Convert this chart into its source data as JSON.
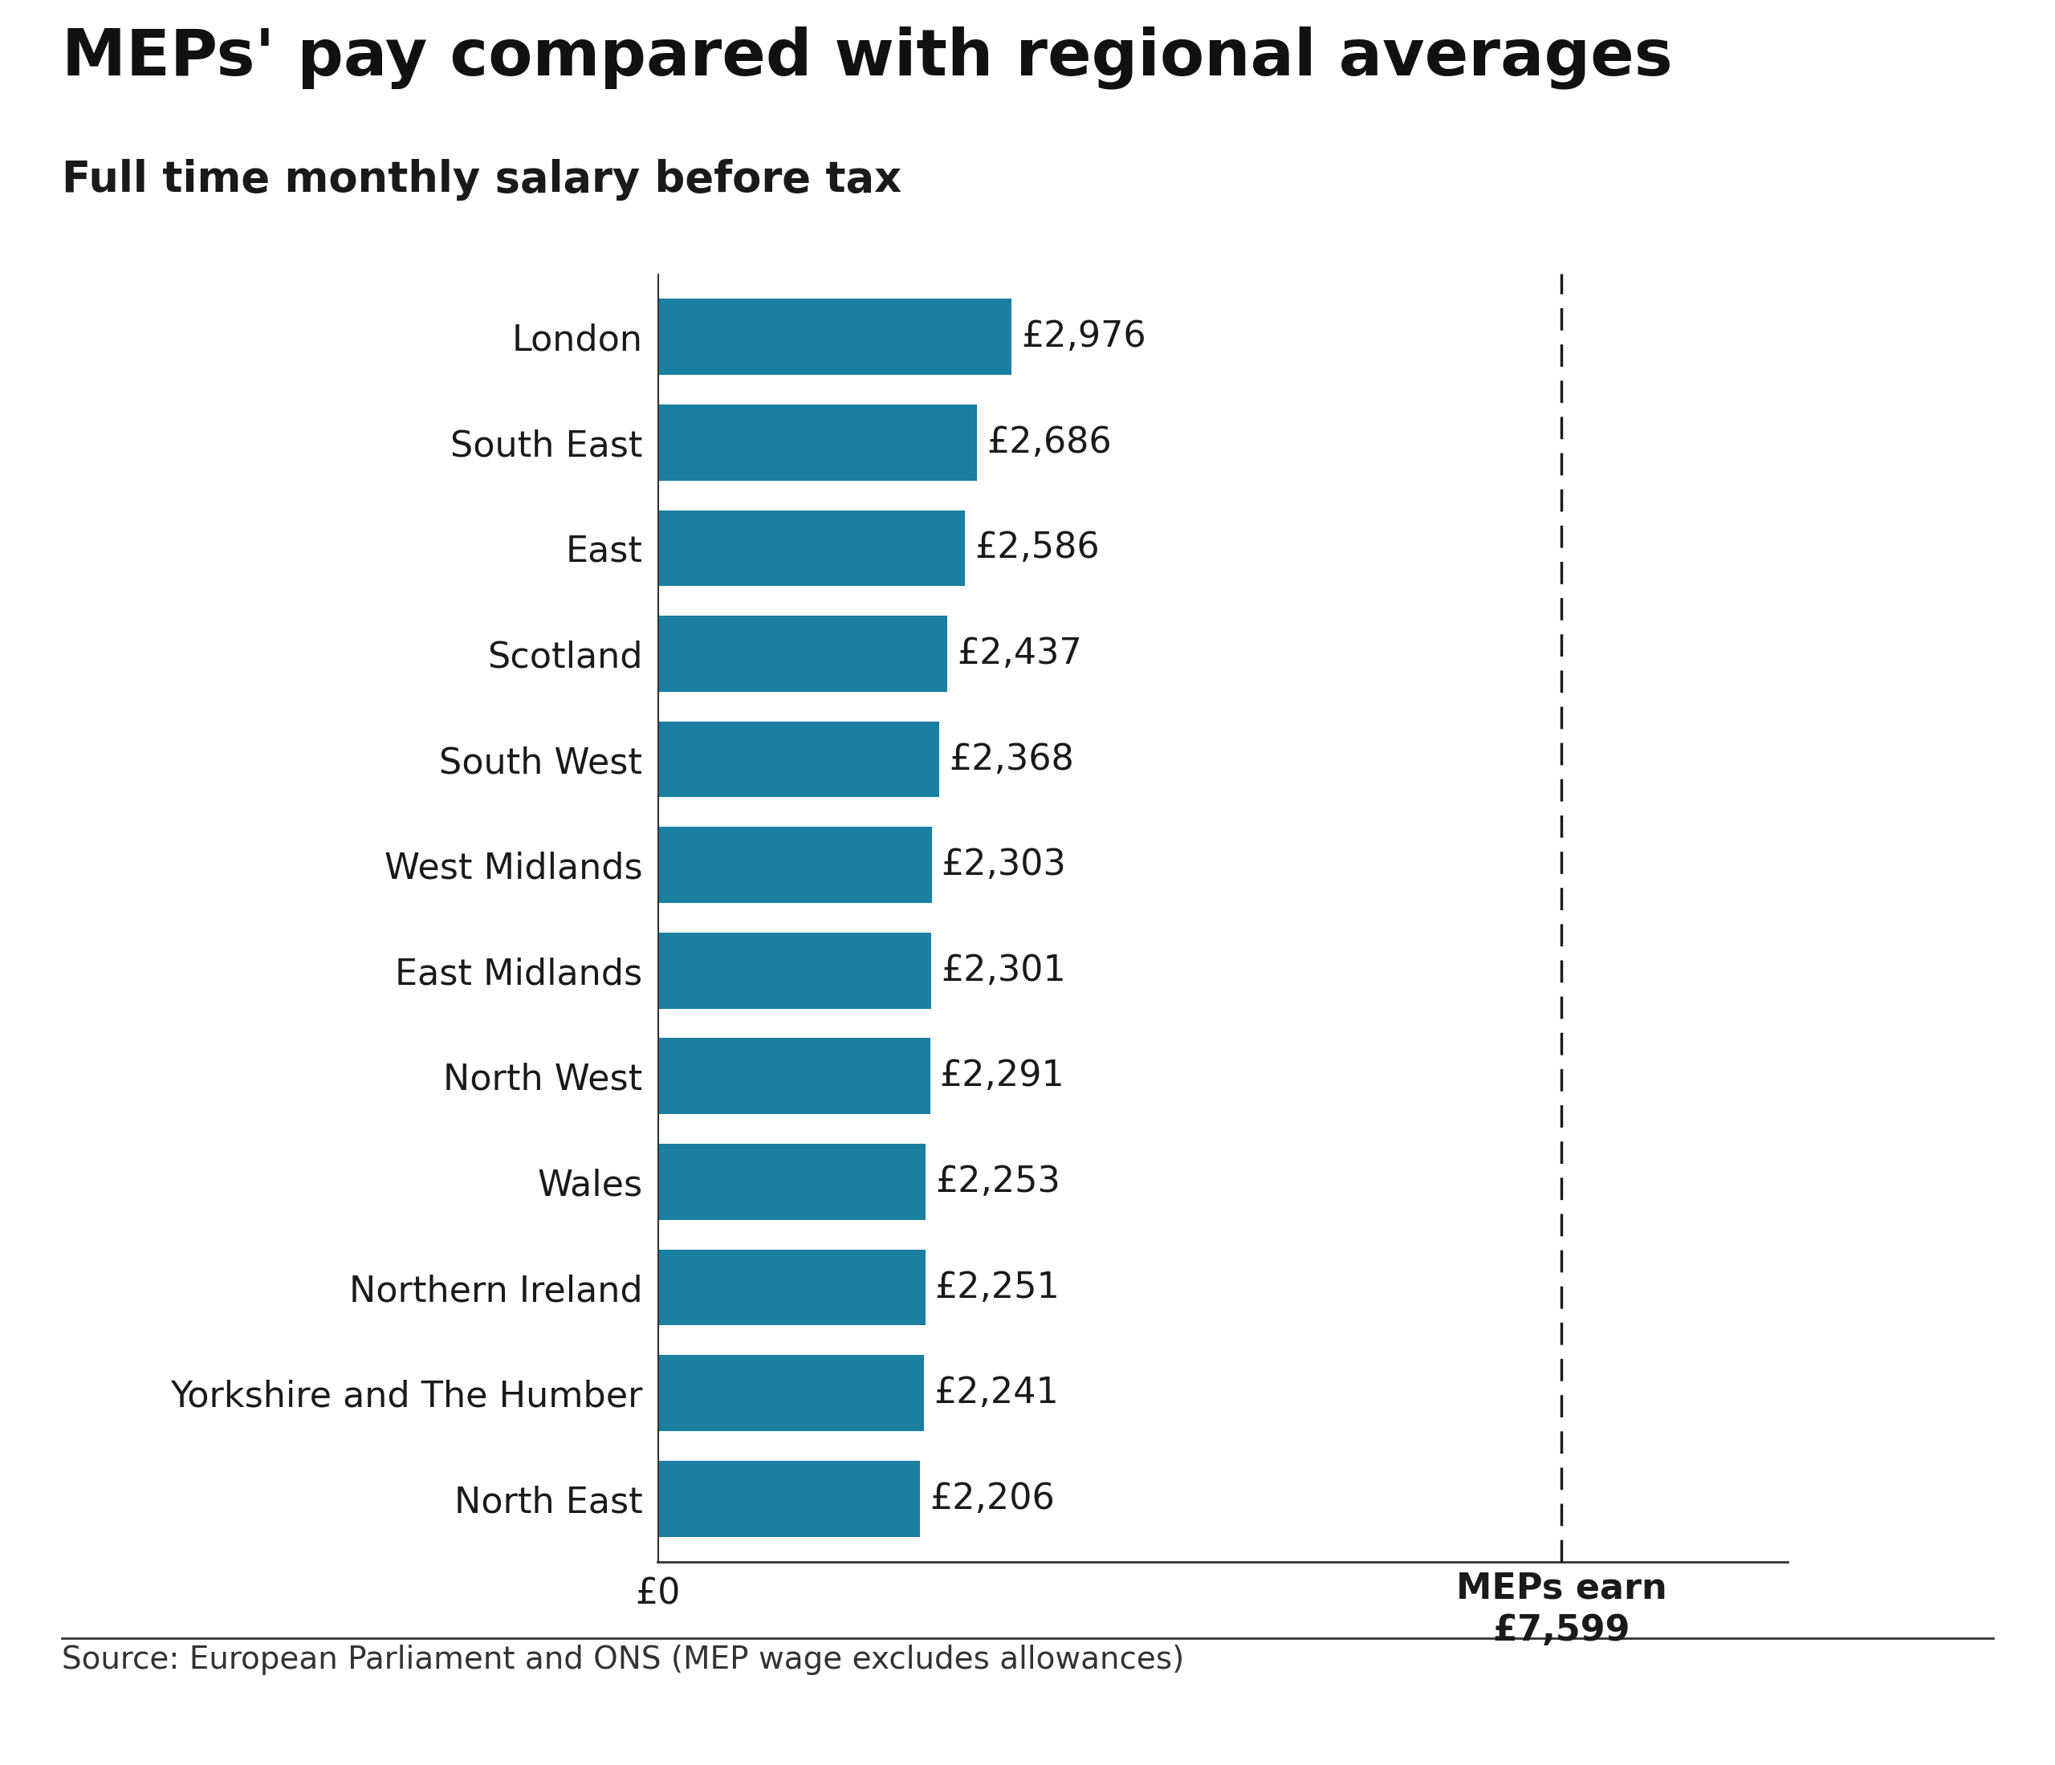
{
  "title": "MEPs' pay compared with regional averages",
  "subtitle": "Full time monthly salary before tax",
  "source": "Source: European Parliament and ONS (MEP wage excludes allowances)",
  "categories": [
    "London",
    "South East",
    "East",
    "Scotland",
    "South West",
    "West Midlands",
    "East Midlands",
    "North West",
    "Wales",
    "Northern Ireland",
    "Yorkshire and The Humber",
    "North East"
  ],
  "values": [
    2976,
    2686,
    2586,
    2437,
    2368,
    2303,
    2301,
    2291,
    2253,
    2251,
    2241,
    2206
  ],
  "labels": [
    "£2,976",
    "£2,686",
    "£2,586",
    "£2,437",
    "£2,368",
    "£2,303",
    "£2,301",
    "£2,291",
    "£2,253",
    "£2,251",
    "£2,241",
    "£2,206"
  ],
  "bar_color": "#1a7fa0",
  "mep_salary": 7599,
  "mep_label_line1": "MEPs earn",
  "mep_label_line2": "£7,599",
  "x_tick_label": "£0",
  "background_color": "#ffffff",
  "title_fontsize": 58,
  "subtitle_fontsize": 38,
  "label_fontsize": 32,
  "source_fontsize": 28,
  "tick_fontsize": 32,
  "bar_label_fontsize": 32,
  "mep_label_fontsize": 32
}
